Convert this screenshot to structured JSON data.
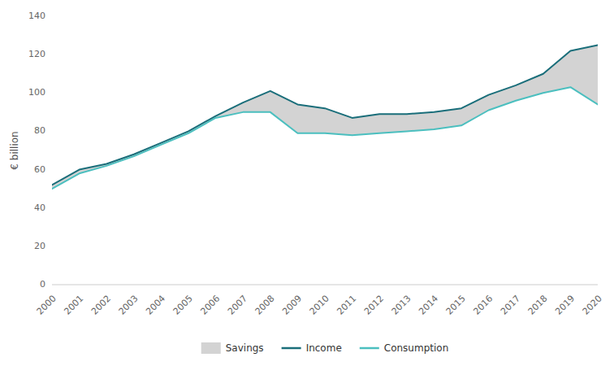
{
  "chart_data": {
    "type": "line",
    "x": [
      2000,
      2001,
      2002,
      2003,
      2004,
      2005,
      2006,
      2007,
      2008,
      2009,
      2010,
      2011,
      2012,
      2013,
      2014,
      2015,
      2016,
      2017,
      2018,
      2019,
      2020
    ],
    "xlim": [
      2000,
      2020
    ],
    "xticks": [
      2000,
      2001,
      2002,
      2003,
      2004,
      2005,
      2006,
      2007,
      2008,
      2009,
      2010,
      2011,
      2012,
      2013,
      2014,
      2015,
      2016,
      2017,
      2018,
      2019,
      2020
    ],
    "ylabel": "€ billion",
    "ylim": [
      0,
      140
    ],
    "yticks": [
      0,
      20,
      40,
      60,
      80,
      100,
      120,
      140
    ],
    "grid": false,
    "legend": "bottom",
    "series": [
      {
        "name": "Savings",
        "type": "area",
        "color": "#d3d3d3",
        "values": [
          52,
          60,
          63,
          68,
          74,
          80,
          88,
          95,
          101,
          94,
          92,
          87,
          89,
          89,
          90,
          92,
          99,
          104,
          110,
          122,
          125
        ],
        "base": [
          50,
          58,
          62,
          67,
          73,
          79,
          87,
          90,
          90,
          79,
          79,
          78,
          79,
          80,
          81,
          83,
          91,
          96,
          100,
          103,
          94
        ]
      },
      {
        "name": "Income",
        "type": "line",
        "color": "#1a6e7a",
        "values": [
          52,
          60,
          63,
          68,
          74,
          80,
          88,
          95,
          101,
          94,
          92,
          87,
          89,
          89,
          90,
          92,
          99,
          104,
          110,
          122,
          125
        ]
      },
      {
        "name": "Consumption",
        "type": "line",
        "color": "#4bbfbf",
        "values": [
          50,
          58,
          62,
          67,
          73,
          79,
          87,
          90,
          90,
          79,
          79,
          78,
          79,
          80,
          81,
          83,
          91,
          96,
          100,
          103,
          94
        ]
      }
    ]
  }
}
